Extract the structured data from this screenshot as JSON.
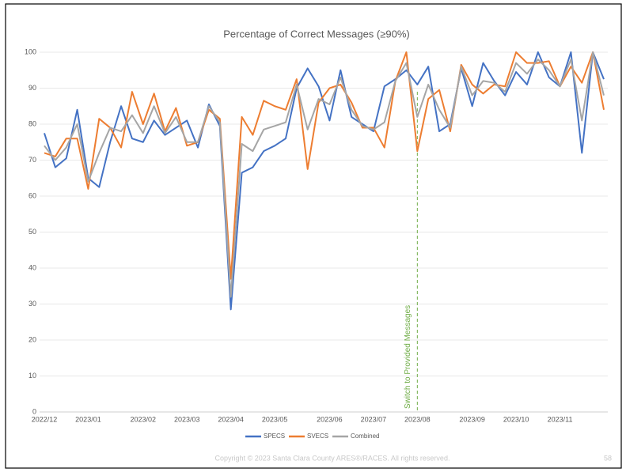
{
  "chart_data": {
    "type": "line",
    "title": "Percentage of Correct Messages (≥90%)",
    "categories": [
      "2022/12",
      null,
      null,
      null,
      "2023/01",
      null,
      null,
      null,
      null,
      "2023/02",
      null,
      null,
      null,
      "2023/03",
      null,
      null,
      null,
      "2023/04",
      null,
      null,
      null,
      "2023/05",
      null,
      null,
      null,
      null,
      "2023/06",
      null,
      null,
      null,
      "2023/07",
      null,
      null,
      null,
      "2023/08",
      null,
      null,
      null,
      null,
      "2023/09",
      null,
      null,
      null,
      "2023/10",
      null,
      null,
      null,
      "2023/11",
      null,
      null,
      null,
      null
    ],
    "series": [
      {
        "name": "SPECS",
        "color": "#4472c4",
        "values": [
          77.5,
          68,
          70.5,
          84,
          65,
          62.5,
          75,
          85,
          76,
          75,
          81,
          77,
          79,
          81,
          73.5,
          85.5,
          79.5,
          28.5,
          66.5,
          68,
          72.5,
          74,
          76,
          90,
          95.5,
          90.5,
          81,
          95,
          82,
          80,
          78,
          90.5,
          92.5,
          95,
          91,
          96,
          78,
          80,
          95.5,
          85,
          97,
          92,
          88,
          94.5,
          91,
          100,
          93,
          90.5,
          100,
          72,
          100,
          92.5
        ]
      },
      {
        "name": "SVECS",
        "color": "#ed7d31",
        "values": [
          72,
          71,
          76,
          76,
          62,
          81.5,
          79,
          73.5,
          89,
          80,
          88.5,
          78,
          84.5,
          74,
          75,
          84,
          81.5,
          37,
          82,
          77,
          86.5,
          85,
          84,
          92.5,
          67.5,
          86,
          90,
          91,
          86,
          79,
          79,
          73.5,
          92,
          100,
          72.5,
          87,
          89.5,
          78,
          96.5,
          91,
          88.5,
          91,
          90.5,
          100,
          97,
          97,
          97.5,
          90.5,
          96,
          91.5,
          100,
          84
        ]
      },
      {
        "name": "Combined",
        "color": "#a5a5a5",
        "values": [
          74,
          70,
          73.5,
          80,
          64,
          72,
          79,
          78,
          82.5,
          77.5,
          85,
          77.5,
          82,
          75,
          75,
          85,
          80.5,
          32,
          74.5,
          72.5,
          78.5,
          79.5,
          80.5,
          91,
          78.5,
          87,
          85.5,
          93,
          84,
          79.5,
          78.5,
          80.5,
          92,
          97,
          82,
          91,
          84,
          79,
          96,
          88,
          92,
          91.5,
          89,
          97,
          94,
          98,
          95,
          90.5,
          98,
          81,
          100,
          88
        ]
      }
    ],
    "ylim": [
      0,
      100
    ],
    "yticks": [
      0,
      10,
      20,
      30,
      40,
      50,
      60,
      70,
      80,
      90,
      100
    ],
    "grid": true,
    "legend": "bottom",
    "annotations": [
      {
        "text": "Switch to Provided Messages",
        "x": "2023/08",
        "color": "#70ad47"
      }
    ]
  },
  "footer": {
    "copyright": "Copyright © 2023 Santa Clara County ARES®/RACES.  All rights reserved.",
    "page": "58"
  }
}
